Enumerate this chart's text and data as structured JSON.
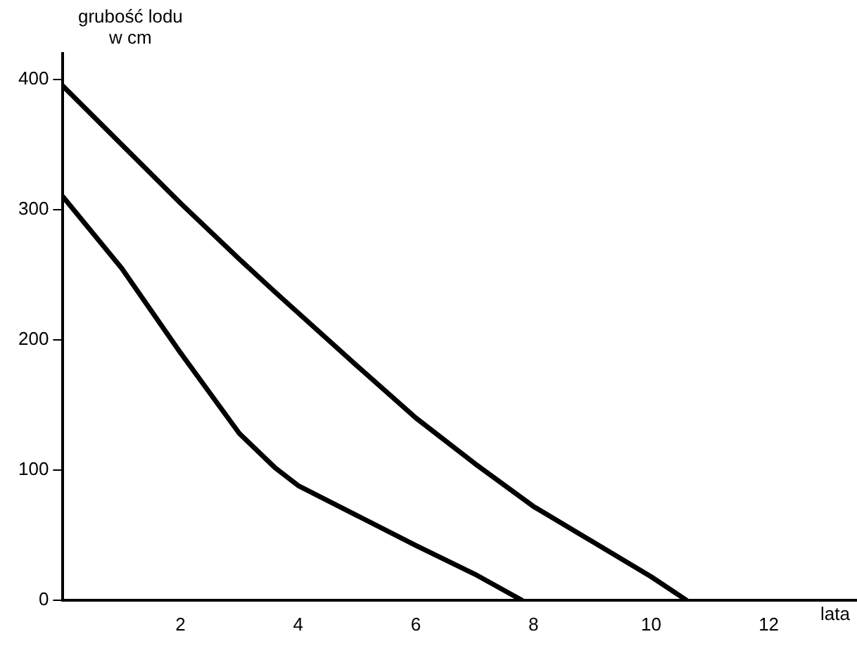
{
  "chart_data": {
    "type": "line",
    "xlabel": "lata",
    "ylabel": "grubość lodu\nw cm",
    "xlim": [
      0,
      13.5
    ],
    "xticks": [
      2,
      4,
      6,
      8,
      10,
      12
    ],
    "ylim": [
      0,
      420
    ],
    "yticks": [
      0,
      100,
      200,
      300,
      400
    ],
    "grid": false,
    "legend": false,
    "marker": "none",
    "line_style": "solid",
    "series": [
      {
        "color": "#000000",
        "x": [
          0,
          1,
          2,
          3,
          3.6,
          5,
          6,
          7,
          8,
          9,
          10,
          10.6
        ],
        "values": [
          395,
          350,
          305,
          262,
          237,
          180,
          140,
          105,
          72,
          45,
          18,
          0
        ]
      },
      {
        "color": "#000000",
        "x": [
          0,
          1,
          2,
          3,
          3.6,
          4,
          5,
          6,
          7,
          7.8
        ],
        "values": [
          310,
          255,
          190,
          128,
          102,
          88,
          65,
          42,
          20,
          0
        ]
      }
    ]
  }
}
